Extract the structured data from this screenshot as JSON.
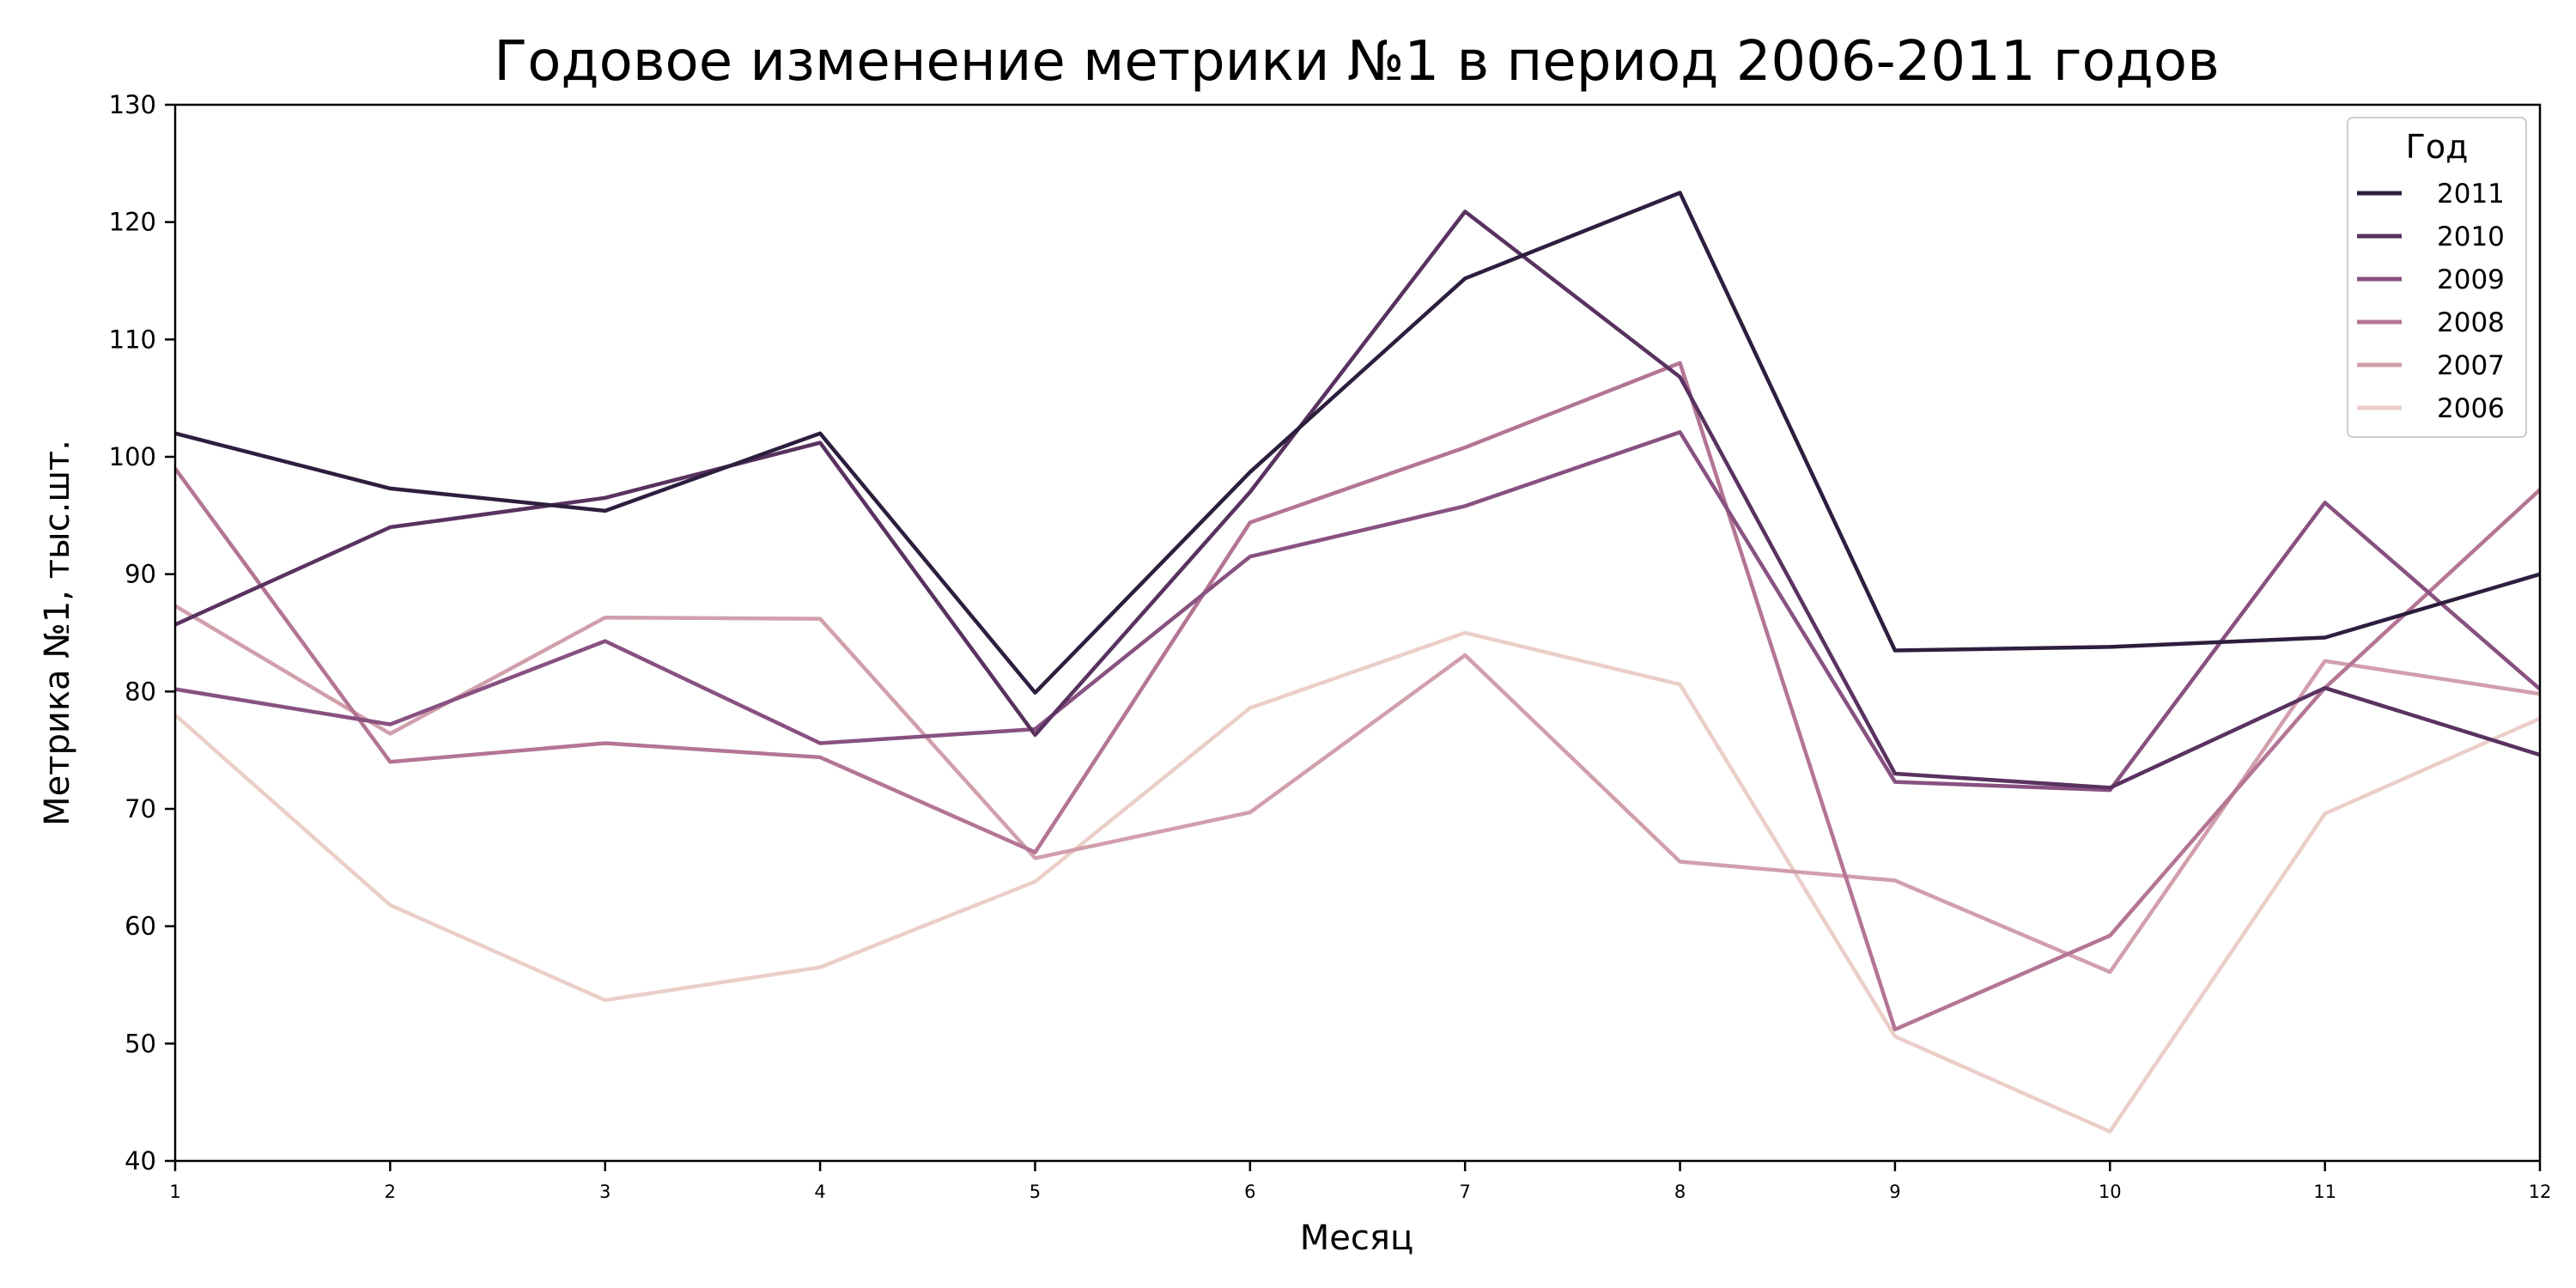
{
  "chart_data": {
    "type": "line",
    "title": "Годовое изменение метрики №1 в период 2006-2011 годов",
    "xlabel": "Месяц",
    "ylabel": "Метрика №1, тыс.шт.",
    "x": [
      1,
      2,
      3,
      4,
      5,
      6,
      7,
      8,
      9,
      10,
      11,
      12
    ],
    "x_ticks": [
      "1",
      "2",
      "3",
      "4",
      "5",
      "6",
      "7",
      "8",
      "9",
      "10",
      "11",
      "12"
    ],
    "xlim": [
      1,
      12
    ],
    "ylim": [
      40,
      130
    ],
    "y_ticks": [
      "40",
      "50",
      "60",
      "70",
      "80",
      "90",
      "100",
      "110",
      "120",
      "130"
    ],
    "grid": false,
    "legend": {
      "title": "Год",
      "placement": "top-right"
    },
    "series": [
      {
        "name": "2011",
        "color": "#2d1e3e",
        "values": [
          102,
          97.3,
          95.4,
          102,
          79.9,
          98.7,
          115.2,
          122.5,
          83.5,
          83.8,
          84.6,
          90
        ]
      },
      {
        "name": "2010",
        "color": "#593260",
        "values": [
          85.7,
          94,
          96.5,
          101.2,
          76.3,
          97,
          120.9,
          106.8,
          73,
          71.8,
          80.3,
          74.6
        ]
      },
      {
        "name": "2009",
        "color": "#885180",
        "values": [
          80.2,
          77.2,
          84.3,
          75.6,
          76.8,
          91.5,
          95.8,
          102.1,
          72.3,
          71.6,
          96.1,
          80.2
        ]
      },
      {
        "name": "2008",
        "color": "#b47594",
        "values": [
          99,
          74,
          75.6,
          74.4,
          66.3,
          94.4,
          100.8,
          108,
          51.2,
          59.2,
          80.3,
          97.2
        ]
      },
      {
        "name": "2007",
        "color": "#d19fab",
        "values": [
          87.3,
          76.4,
          86.3,
          86.2,
          65.8,
          69.7,
          83.1,
          65.5,
          63.9,
          56.1,
          82.6,
          79.8
        ]
      },
      {
        "name": "2006",
        "color": "#eacfc8",
        "values": [
          78,
          61.8,
          53.7,
          56.5,
          63.8,
          78.6,
          85,
          80.6,
          50.6,
          42.5,
          69.6,
          77.7
        ]
      }
    ]
  }
}
